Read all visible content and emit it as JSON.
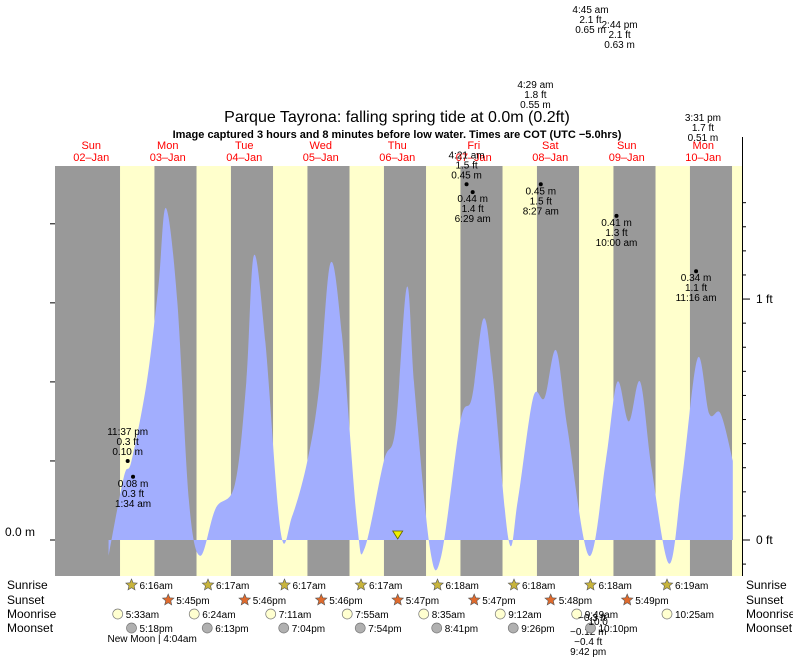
{
  "chart_data": {
    "type": "area",
    "title": "Parque Tayrona: falling  spring tide at 0.0m (0.2ft)",
    "subtitle": "Image captured 3 hours and 8 minutes before low water. Times are COT (UTC −5.0hrs)",
    "y_unit_left": "m",
    "y_unit_right": "ft",
    "ylim": [
      -0.13,
      0.46
    ],
    "left_ticks": [
      {
        "value": 0.0,
        "label": "0.0 m"
      }
    ],
    "right_ticks": [
      {
        "value": 0.0,
        "label": "0 ft"
      },
      {
        "value": 0.3048,
        "label": "1 ft"
      }
    ],
    "days": [
      {
        "dow": "Sun",
        "date": "02–Jan"
      },
      {
        "dow": "Mon",
        "date": "03–Jan"
      },
      {
        "dow": "Tue",
        "date": "04–Jan"
      },
      {
        "dow": "Wed",
        "date": "05–Jan"
      },
      {
        "dow": "Thu",
        "date": "06–Jan"
      },
      {
        "dow": "Fri",
        "date": "07–Jan"
      },
      {
        "dow": "Sat",
        "date": "08–Jan"
      },
      {
        "dow": "Sun",
        "date": "09–Jan"
      },
      {
        "dow": "Mon",
        "date": "10–Jan"
      }
    ],
    "series": [
      {
        "values": [
          [
            0.7,
            -0.02
          ],
          [
            0.9,
            0.08
          ],
          [
            1.0,
            0.1
          ],
          [
            1.2,
            0.2
          ],
          [
            1.35,
            0.32
          ],
          [
            1.45,
            0.42
          ],
          [
            1.6,
            0.3
          ],
          [
            1.75,
            0.05
          ],
          [
            1.9,
            -0.02
          ],
          [
            2.1,
            0.04
          ],
          [
            2.35,
            0.07
          ],
          [
            2.5,
            0.2
          ],
          [
            2.6,
            0.36
          ],
          [
            2.75,
            0.25
          ],
          [
            2.95,
            0.01
          ],
          [
            3.1,
            0.03
          ],
          [
            3.3,
            0.1
          ],
          [
            3.45,
            0.19
          ],
          [
            3.6,
            0.35
          ],
          [
            3.75,
            0.26
          ],
          [
            3.95,
            0.02
          ],
          [
            4.05,
            -0.01
          ],
          [
            4.3,
            0.1
          ],
          [
            4.45,
            0.14
          ],
          [
            4.6,
            0.32
          ],
          [
            4.7,
            0.19
          ],
          [
            4.9,
            -0.01
          ],
          [
            5.05,
            -0.02
          ],
          [
            5.3,
            0.15
          ],
          [
            5.45,
            0.18
          ],
          [
            5.6,
            0.28
          ],
          [
            5.72,
            0.21
          ],
          [
            5.93,
            0.0
          ],
          [
            6.05,
            0.05
          ],
          [
            6.25,
            0.18
          ],
          [
            6.4,
            0.18
          ],
          [
            6.55,
            0.24
          ],
          [
            6.7,
            0.14
          ],
          [
            6.98,
            -0.02
          ],
          [
            7.2,
            0.1
          ],
          [
            7.35,
            0.2
          ],
          [
            7.5,
            0.15
          ],
          [
            7.65,
            0.2
          ],
          [
            7.8,
            0.09
          ],
          [
            8.03,
            -0.03
          ],
          [
            8.2,
            0.08
          ],
          [
            8.4,
            0.23
          ],
          [
            8.55,
            0.16
          ],
          [
            8.7,
            0.16
          ],
          [
            8.86,
            0.1
          ]
        ]
      }
    ],
    "tide_labels": [
      {
        "x": 0.95,
        "y": 0.1,
        "lines": [
          "11:37 pm",
          "0.3 ft",
          "0.10 m"
        ],
        "pos": "above"
      },
      {
        "x": 1.02,
        "y": 0.08,
        "lines": [
          "0.08 m",
          "0.3 ft",
          "1:34 am"
        ],
        "pos": "below"
      },
      {
        "x": 5.38,
        "y": 0.45,
        "lines": [
          "4:21 am",
          "1.5 ft",
          "0.45 m"
        ],
        "pos": "above"
      },
      {
        "x": 5.46,
        "y": 0.44,
        "lines": [
          "0.44 m",
          "1.4 ft",
          "6:29 am"
        ],
        "pos": "below"
      },
      {
        "x": 6.35,
        "y": 0.45,
        "lines": [
          "0.45 m",
          "1.5 ft",
          "8:27 am"
        ],
        "pos": "below"
      },
      {
        "x": 7.34,
        "y": 0.41,
        "lines": [
          "0.41 m",
          "1.3 ft",
          "10:00 am"
        ],
        "pos": "below"
      },
      {
        "x": 8.38,
        "y": 0.34,
        "lines": [
          "0.34 m",
          "1.1 ft",
          "11:16 am"
        ],
        "pos": "below"
      }
    ],
    "top_labels": [
      {
        "x": 6.28,
        "lines": [
          "4:29 am",
          "1.8 ft",
          "0.55 m"
        ],
        "base": 88
      },
      {
        "x": 7.0,
        "lines": [
          "4:45 am",
          "2.1 ft",
          "0.65 m"
        ],
        "base": 13
      },
      {
        "x": 7.38,
        "lines": [
          "2:44 pm",
          "2.1 ft",
          "0.63 m"
        ],
        "base": 28
      },
      {
        "x": 8.47,
        "lines": [
          "3:31 pm",
          "1.7 ft",
          "0.51 m"
        ],
        "base": 121
      }
    ],
    "bottom_cut_labels": [
      {
        "x": 6.97,
        "lines": [
          "−0.12 m",
          "−0.4 ft",
          "9:42 pm"
        ]
      }
    ],
    "marker_x": 4.48,
    "daylight": [
      [
        0.85,
        1.3
      ],
      [
        1.85,
        2.3
      ],
      [
        2.85,
        3.3
      ],
      [
        3.85,
        4.3
      ],
      [
        4.85,
        5.3
      ],
      [
        5.85,
        6.3
      ],
      [
        6.85,
        7.3
      ],
      [
        7.85,
        8.3
      ],
      [
        8.85,
        9.3
      ]
    ],
    "rows": {
      "sunrise": {
        "label": "Sunrise",
        "events": [
          {
            "x": 1.0,
            "time": "6:16am"
          },
          {
            "x": 2.0,
            "time": "6:17am"
          },
          {
            "x": 3.0,
            "time": "6:17am"
          },
          {
            "x": 4.0,
            "time": "6:17am"
          },
          {
            "x": 5.0,
            "time": "6:18am"
          },
          {
            "x": 6.0,
            "time": "6:18am"
          },
          {
            "x": 7.0,
            "time": "6:18am"
          },
          {
            "x": 8.0,
            "time": "6:19am"
          }
        ]
      },
      "sunset": {
        "label": "Sunset",
        "events": [
          {
            "x": 1.48,
            "time": "5:45pm"
          },
          {
            "x": 2.48,
            "time": "5:46pm"
          },
          {
            "x": 3.48,
            "time": "5:46pm"
          },
          {
            "x": 4.48,
            "time": "5:47pm"
          },
          {
            "x": 5.48,
            "time": "5:47pm"
          },
          {
            "x": 6.48,
            "time": "5:48pm"
          },
          {
            "x": 7.48,
            "time": "5:49pm"
          }
        ]
      },
      "moonrise": {
        "label": "Moonrise",
        "events": [
          {
            "x": 0.82,
            "time": "5:33am"
          },
          {
            "x": 1.82,
            "time": "6:24am"
          },
          {
            "x": 2.82,
            "time": "7:11am"
          },
          {
            "x": 3.82,
            "time": "7:55am"
          },
          {
            "x": 4.82,
            "time": "8:35am"
          },
          {
            "x": 5.82,
            "time": "9:12am"
          },
          {
            "x": 6.82,
            "time": "9:49am"
          },
          {
            "x": 8.0,
            "time": "10:25am"
          }
        ]
      },
      "moonset": {
        "label": "Moonset",
        "events": [
          {
            "x": 1.0,
            "time": "5:18pm"
          },
          {
            "x": 1.99,
            "time": "6:13pm"
          },
          {
            "x": 2.99,
            "time": "7:04pm"
          },
          {
            "x": 3.99,
            "time": "7:54pm"
          },
          {
            "x": 4.99,
            "time": "8:41pm"
          },
          {
            "x": 5.99,
            "time": "9:26pm"
          },
          {
            "x": 7.0,
            "time": "10:10pm"
          }
        ]
      }
    },
    "extra_texts": [
      {
        "x": 1.27,
        "row": "moonset_below",
        "text": "New Moon | 4:04am"
      },
      {
        "x": 7.02,
        "row": "moonrise_below",
        "text": "−0.3 ft"
      },
      {
        "x": 7.1,
        "row": "moonset_above",
        "text": "10:0"
      }
    ],
    "colors": {
      "night": "#999999",
      "day": "#ffffcc",
      "water": "#a2aefe",
      "day_label": "#ff0000",
      "sun_star": "#c8b43c",
      "sunset_star": "#e06a2c",
      "moonrise": "#ffffd0",
      "moonset": "#b0b0b0"
    }
  }
}
